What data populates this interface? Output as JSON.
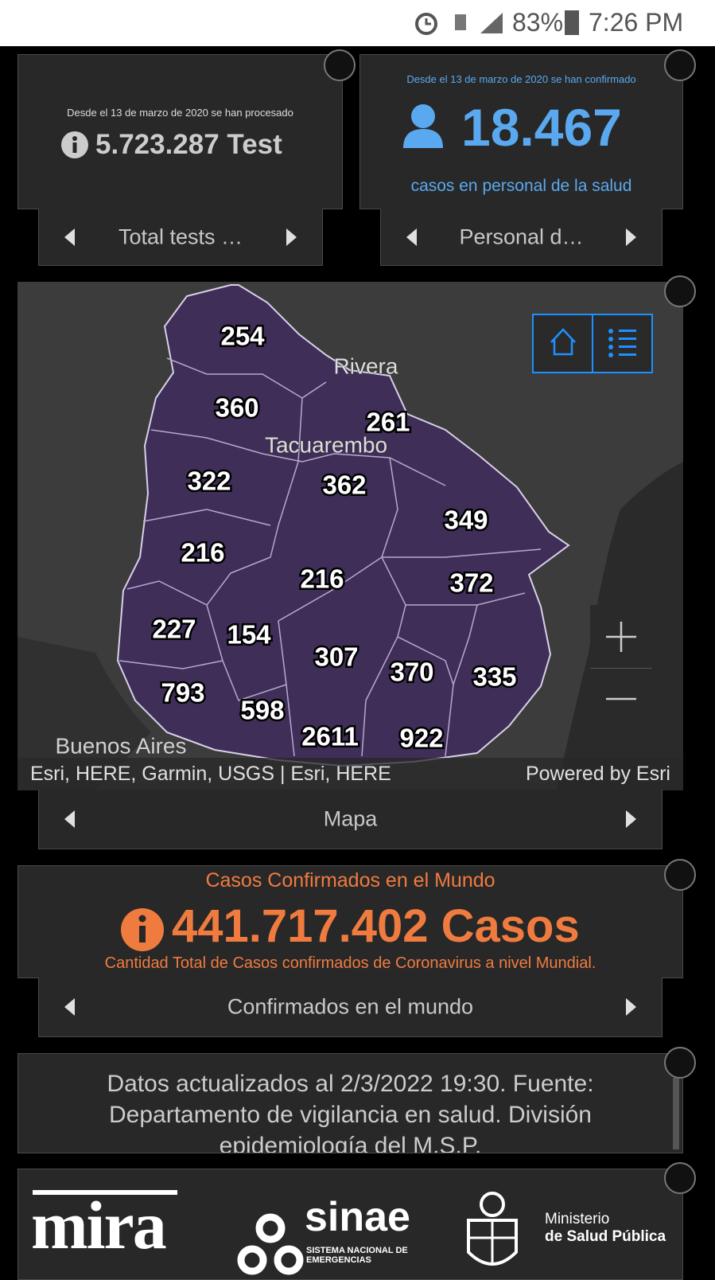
{
  "status_bar": {
    "battery": "83%",
    "time": "7:26 PM"
  },
  "tests_card": {
    "caption": "Desde el 13 de marzo de 2020 se han procesado",
    "value": "5.723.287 Test",
    "nav": "Total tests …"
  },
  "health_card": {
    "caption": "Desde el 13 de marzo de 2020 se han confirmado",
    "value": "18.467",
    "subtitle": "casos en personal de la salud",
    "nav": "Personal d…"
  },
  "map_card": {
    "department_counts": [
      254,
      360,
      261,
      322,
      362,
      349,
      216,
      216,
      372,
      227,
      154,
      307,
      370,
      335,
      793,
      598,
      2611,
      922
    ],
    "place_labels": [
      "Rivera",
      "Tacuarembo",
      "Buenos Aires"
    ],
    "attribution": "Esri, HERE, Garmin, USGS | Esri, HERE",
    "powered_by": "Powered by Esri",
    "nav": "Mapa"
  },
  "world_card": {
    "title": "Casos Confirmados en el Mundo",
    "value": "441.717.402 Casos",
    "description": "Cantidad Total de Casos confirmados de Coronavirus a nivel Mundial.",
    "nav": "Confirmados en el mundo"
  },
  "update_card": {
    "text": "Datos actualizados al 2/3/2022 19:30. Fuente: Departamento de vigilancia en salud. División epidemiología del M.S.P."
  },
  "logos": {
    "mira": "mira",
    "sinae": "sinae",
    "sinae_subtitle": "SISTEMA NACIONAL DE EMERGENCIAS",
    "ministry_line1": "Ministerio",
    "ministry_line2": "de Salud Pública"
  }
}
